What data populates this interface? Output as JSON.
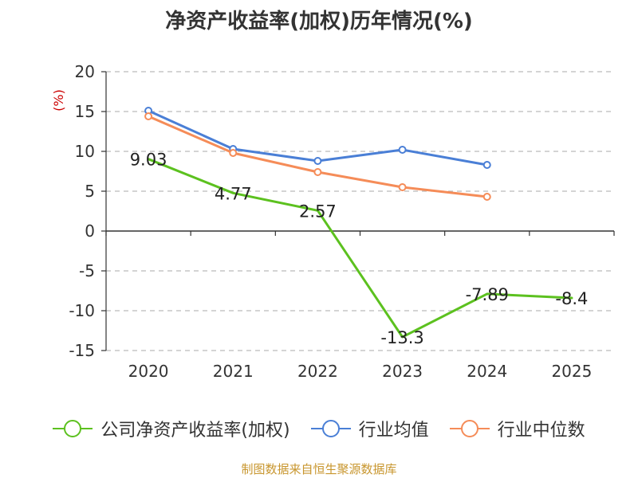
{
  "title": "净资产收益率(加权)历年情况(%)",
  "source": "制图数据来自恒生聚源数据库",
  "colors": {
    "company": "#5cc11f",
    "industry_avg": "#4a7fd6",
    "industry_median": "#f58c58",
    "axis": "#333333",
    "grid": "#bbbbbb",
    "unit": "#cc0000"
  },
  "chart_data": {
    "type": "line",
    "title": "净资产收益率(加权)历年情况(%)",
    "ylabel": "(%)",
    "xlabel": "",
    "categories": [
      "2020",
      "2021",
      "2022",
      "2023",
      "2024",
      "2025"
    ],
    "ylim": [
      -15,
      20
    ],
    "yticks": [
      20,
      15,
      10,
      5,
      0,
      -5,
      -10,
      -15
    ],
    "grid": true,
    "legend_position": "bottom",
    "series": [
      {
        "key": "company",
        "name": "公司净资产收益率(加权)",
        "values": [
          9.03,
          4.77,
          2.57,
          -13.3,
          -7.89,
          -8.4
        ],
        "labels": [
          "9.03",
          "4.77",
          "2.57",
          "-13.3",
          "-7.89",
          "-8.4"
        ],
        "show_markers": false
      },
      {
        "key": "industry_avg",
        "name": "行业均值",
        "values": [
          15.1,
          10.3,
          8.8,
          10.2,
          8.3,
          null
        ],
        "show_markers": true
      },
      {
        "key": "industry_median",
        "name": "行业中位数",
        "values": [
          14.4,
          9.8,
          7.4,
          5.5,
          4.3,
          null
        ],
        "show_markers": true
      }
    ]
  }
}
